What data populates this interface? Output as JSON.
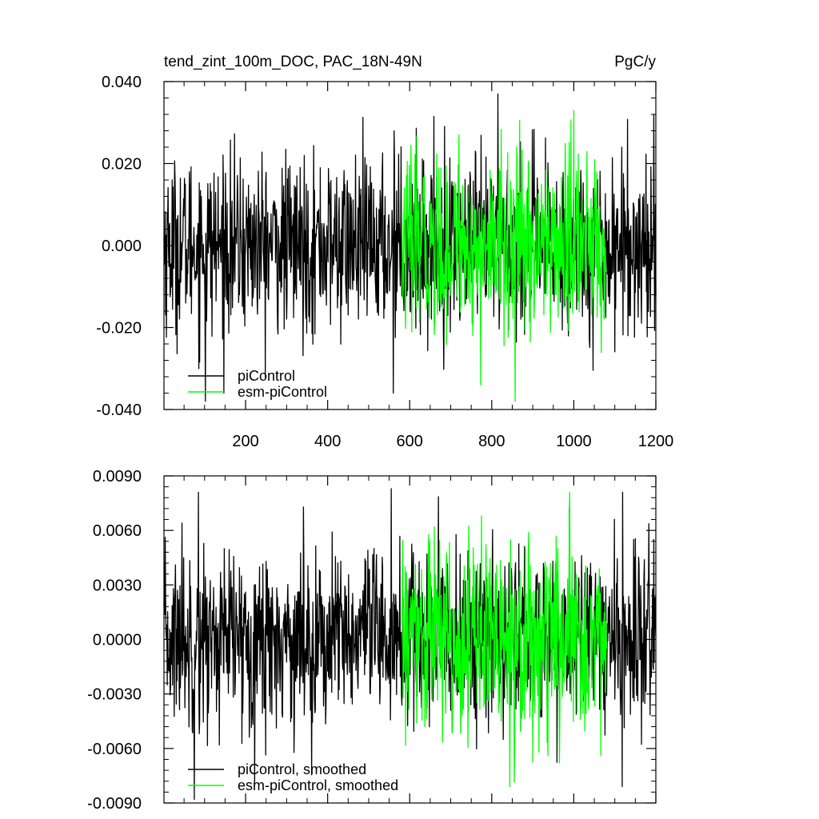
{
  "chart_data": [
    {
      "type": "line",
      "title": "tend_zint_100m_DOC, PAC_18N-49N",
      "units": "PgC/y",
      "xlim": [
        1,
        1200
      ],
      "ylim": [
        -0.04,
        0.04
      ],
      "x_ticks": [
        200,
        400,
        600,
        800,
        1000,
        1200
      ],
      "x_tick_labels": [
        "200",
        "400",
        "600",
        "800",
        "1000",
        "1200"
      ],
      "y_ticks": [
        -0.04,
        -0.02,
        0.0,
        0.02,
        0.04
      ],
      "y_tick_labels": [
        "-0.040",
        "-0.020",
        "0.000",
        "0.020",
        "0.040"
      ],
      "legend_position": "bottom-left",
      "series": [
        {
          "name": "piControl",
          "color": "#000000",
          "x_start": 1,
          "x_end": 1200,
          "std": 0.0105,
          "extremes": [
            [
              102,
              -0.038
            ],
            [
              562,
              0.028
            ],
            [
              815,
              0.037
            ],
            [
              1195,
              0.032
            ],
            [
              560,
              -0.036
            ]
          ]
        },
        {
          "name": "esm-piControl",
          "color": "#00ff00",
          "x_start": 581,
          "x_end": 1080,
          "std": 0.0105,
          "extremes": [
            [
              857,
              -0.038
            ],
            [
              1000,
              0.033
            ],
            [
              773,
              -0.034
            ],
            [
              720,
              0.027
            ]
          ]
        }
      ]
    },
    {
      "type": "line",
      "title": "",
      "xlim": [
        1,
        1200
      ],
      "ylim": [
        -0.009,
        0.009
      ],
      "y_ticks": [
        -0.009,
        -0.006,
        -0.003,
        0.0,
        0.003,
        0.006,
        0.009
      ],
      "y_tick_labels": [
        "-0.0090",
        "-0.0060",
        "-0.0030",
        "0.0000",
        "0.0030",
        "0.0060",
        "0.0090"
      ],
      "legend_position": "bottom-left",
      "series": [
        {
          "name": "piControl, smoothed",
          "color": "#000000",
          "x_start": 1,
          "x_end": 1200,
          "std": 0.0024,
          "extremes": [
            [
              75,
              -0.0088
            ],
            [
              85,
              0.0081
            ],
            [
              555,
              0.0083
            ],
            [
              45,
              0.0064
            ],
            [
              1195,
              0.0055
            ]
          ]
        },
        {
          "name": "esm-piControl, smoothed",
          "color": "#00ff00",
          "x_start": 581,
          "x_end": 1080,
          "std": 0.0026,
          "extremes": [
            [
              775,
              0.0068
            ],
            [
              915,
              -0.0062
            ],
            [
              660,
              0.0062
            ],
            [
              890,
              0.0059
            ]
          ]
        }
      ]
    }
  ]
}
